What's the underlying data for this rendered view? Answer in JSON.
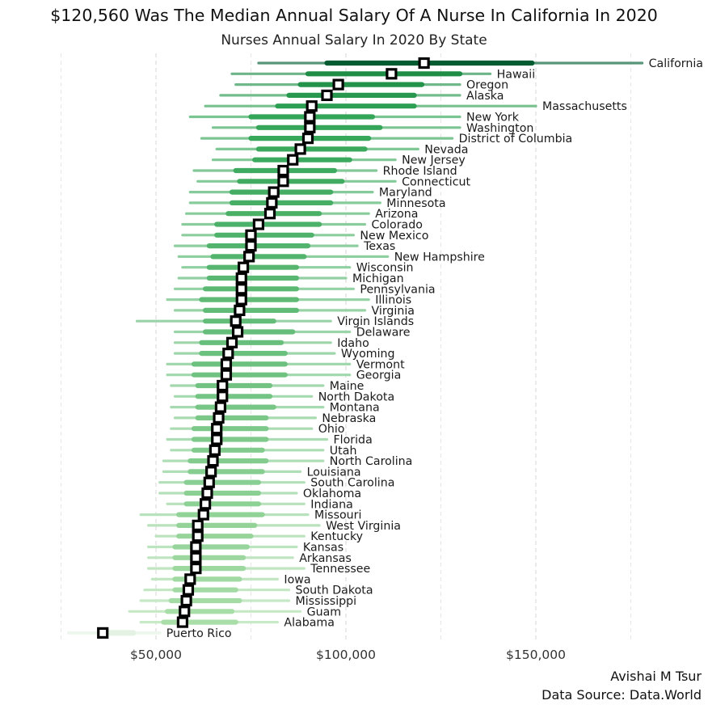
{
  "chart_data": {
    "type": "bar",
    "title": "$120,560 Was The Median Annual Salary Of A Nurse In California In 2020",
    "subtitle": "Nurses Annual Salary In 2020 By State",
    "xlabel": "",
    "ylabel": "",
    "xlim": [
      25000,
      178000
    ],
    "x_ticks": [
      50000,
      100000,
      150000
    ],
    "x_tick_labels": [
      "$50,000",
      "$100,000",
      "$150,000"
    ],
    "grid": "vertical dashed",
    "label_position": "right of each range",
    "series_note": "nested ranges: p10-p90 (thin), p25-p75 (thick), median (square marker)",
    "categories": [
      "California",
      "Hawaii",
      "Oregon",
      "Alaska",
      "Massachusetts",
      "New York",
      "Washington",
      "District of Columbia",
      "Nevada",
      "New Jersey",
      "Rhode Island",
      "Connecticut",
      "Maryland",
      "Minnesota",
      "Arizona",
      "Colorado",
      "New Mexico",
      "Texas",
      "New Hampshire",
      "Wisconsin",
      "Michigan",
      "Pennsylvania",
      "Illinois",
      "Virginia",
      "Virgin Islands",
      "Delaware",
      "Idaho",
      "Wyoming",
      "Vermont",
      "Georgia",
      "Maine",
      "North Dakota",
      "Montana",
      "Nebraska",
      "Ohio",
      "Florida",
      "Utah",
      "North Carolina",
      "Louisiana",
      "South Carolina",
      "Oklahoma",
      "Indiana",
      "Missouri",
      "West Virginia",
      "Kentucky",
      "Kansas",
      "Arkansas",
      "Tennessee",
      "Iowa",
      "South Dakota",
      "Mississippi",
      "Guam",
      "Alabama",
      "Puerto Rico"
    ],
    "series": [
      {
        "name": "p10",
        "values": [
          77000,
          70000,
          71000,
          67000,
          63000,
          59000,
          65000,
          62000,
          66000,
          65000,
          60000,
          61000,
          59000,
          59000,
          58000,
          57000,
          57000,
          55000,
          56000,
          57000,
          56000,
          55000,
          53000,
          55000,
          45000,
          55000,
          55000,
          55000,
          53000,
          53000,
          54000,
          55000,
          54000,
          55000,
          54000,
          53000,
          54000,
          52000,
          52000,
          51000,
          51000,
          53000,
          46000,
          48000,
          50000,
          48000,
          48000,
          48000,
          49000,
          47000,
          46000,
          43000,
          46000,
          27000
        ]
      },
      {
        "name": "p25",
        "values": [
          95000,
          90000,
          88000,
          85000,
          82000,
          75000,
          77000,
          75000,
          77000,
          76000,
          71000,
          72000,
          70000,
          70000,
          69000,
          66000,
          66000,
          64000,
          65000,
          64000,
          64000,
          63000,
          62000,
          63000,
          63000,
          63000,
          62000,
          62000,
          60000,
          60000,
          61000,
          61000,
          61000,
          61000,
          60000,
          60000,
          60000,
          59000,
          59000,
          58000,
          58000,
          58000,
          56000,
          56000,
          56000,
          55000,
          55000,
          55000,
          55000,
          55000,
          54000,
          53000,
          52000,
          37000
        ]
      },
      {
        "name": "median",
        "values": [
          120560,
          112000,
          98000,
          95000,
          91000,
          90500,
          90500,
          90000,
          88000,
          86000,
          83500,
          83500,
          81000,
          80500,
          80000,
          77000,
          75000,
          75000,
          74500,
          73000,
          72500,
          72500,
          72500,
          72000,
          71000,
          71500,
          70000,
          69000,
          68500,
          68500,
          67500,
          67500,
          67000,
          66500,
          66000,
          66000,
          65500,
          65000,
          64500,
          64000,
          63500,
          63000,
          62500,
          61000,
          61000,
          60500,
          60500,
          60500,
          59000,
          58500,
          58000,
          57500,
          57000,
          36000
        ]
      },
      {
        "name": "p75",
        "values": [
          149000,
          130000,
          120000,
          118000,
          118000,
          107000,
          109000,
          106000,
          105000,
          101000,
          97000,
          99000,
          96000,
          96000,
          93000,
          93000,
          91000,
          90000,
          89000,
          87000,
          87000,
          87000,
          87000,
          87000,
          81000,
          86000,
          83000,
          84000,
          84000,
          84000,
          80000,
          80000,
          81000,
          79000,
          79000,
          79000,
          78000,
          79000,
          78000,
          77000,
          77000,
          77000,
          78000,
          76000,
          75000,
          74000,
          73000,
          73000,
          72000,
          71000,
          72000,
          70000,
          71000,
          44000
        ]
      },
      {
        "name": "p90",
        "values": [
          178000,
          138000,
          130000,
          130000,
          150000,
          130000,
          130000,
          128000,
          119000,
          113000,
          108000,
          113000,
          107000,
          109000,
          106000,
          105000,
          102000,
          103000,
          111000,
          101000,
          100000,
          102000,
          106000,
          105000,
          96000,
          101000,
          96000,
          97000,
          101000,
          101000,
          94000,
          91000,
          94000,
          92000,
          91000,
          95000,
          94000,
          94000,
          88000,
          89000,
          87000,
          89000,
          90000,
          93000,
          89000,
          87000,
          86000,
          89000,
          82000,
          85000,
          85000,
          88000,
          82000,
          51000
        ]
      }
    ],
    "credits": [
      "Avishai M Tsur",
      "Data Source: Data.World"
    ]
  }
}
